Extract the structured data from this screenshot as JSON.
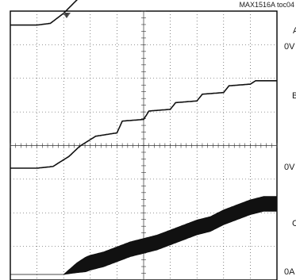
{
  "chart_data": {
    "type": "line",
    "title": "MAX1516A toc04",
    "grid": true,
    "grid_divisions": {
      "x": 10,
      "y": 8
    },
    "channels": [
      {
        "id": "A",
        "ground_label": "0V",
        "trace_color": "#111111"
      },
      {
        "id": "B",
        "ground_label": "0V",
        "trace_color": "#111111"
      },
      {
        "id": "C",
        "ground_label": "0A",
        "trace_color": "#111111"
      }
    ],
    "trigger_marker": "T",
    "series": [
      {
        "x": [
          0,
          0.5,
          1.0,
          1.5,
          2.0,
          2.5,
          3.0,
          3.5,
          4.0,
          10.0
        ],
        "values": [
          0.6,
          0.6,
          0.6,
          0.65,
          0.95,
          1.35,
          1.62,
          1.72,
          1.75,
          1.75
        ]
      },
      {
        "x": [
          0,
          1.0,
          1.6,
          2.2,
          2.6,
          3.2,
          4.0,
          4.2,
          5.0,
          5.2,
          6.0,
          6.2,
          7.0,
          7.2,
          8.0,
          8.2,
          9.0,
          9.2,
          10.0
        ],
        "values": [
          0.0,
          0.0,
          0.05,
          0.35,
          0.65,
          0.95,
          1.05,
          1.4,
          1.45,
          1.7,
          1.75,
          1.95,
          2.0,
          2.2,
          2.25,
          2.45,
          2.5,
          2.6,
          2.6
        ]
      },
      {
        "x": [
          0,
          2.0,
          2.5,
          3.0,
          3.5,
          4.0,
          4.5,
          5.0,
          5.5,
          6.0,
          6.5,
          7.0,
          7.5,
          8.0,
          8.5,
          9.0,
          9.5,
          10.0
        ],
        "values": [
          0.0,
          0.0,
          0.2,
          0.35,
          0.45,
          0.6,
          0.75,
          0.85,
          0.95,
          1.1,
          1.25,
          1.4,
          1.5,
          1.7,
          1.85,
          2.0,
          2.1,
          2.1
        ],
        "noise": 0.22
      }
    ]
  }
}
